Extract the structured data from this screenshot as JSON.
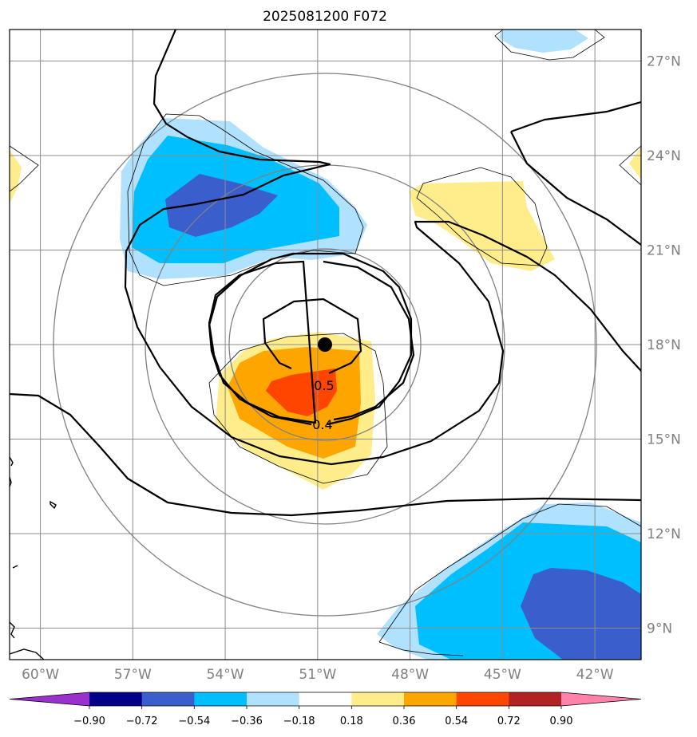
{
  "figure": {
    "title": "2025081200 F072"
  },
  "map": {
    "lon_range": [
      -61,
      -40.5
    ],
    "lat_range": [
      8,
      28
    ],
    "lon_ticks": [
      -60,
      -57,
      -54,
      -51,
      -48,
      -45,
      -42
    ],
    "lon_labels": [
      "60°W",
      "57°W",
      "54°W",
      "51°W",
      "48°W",
      "45°W",
      "42°W"
    ],
    "lat_ticks": [
      9,
      12,
      15,
      18,
      21,
      24,
      27
    ],
    "lat_labels": [
      "9°N",
      "12°N",
      "15°N",
      "18°N",
      "21°N",
      "24°N",
      "27°N"
    ],
    "grid": true,
    "center_marker": {
      "lon": -51.0,
      "lat": 18.2
    },
    "range_rings_deg": [
      3,
      5.5,
      8.5
    ],
    "contour_labels": [
      {
        "text": "0.5",
        "lon": -51.0,
        "lat": 16.9
      },
      {
        "text": "0.4",
        "lon": -51.0,
        "lat": 15.7
      }
    ]
  },
  "colorbar": {
    "levels": [
      -0.9,
      -0.72,
      -0.54,
      -0.36,
      -0.18,
      0.18,
      0.36,
      0.54,
      0.72,
      0.9
    ],
    "labels": [
      "−0.90",
      "−0.72",
      "−0.54",
      "−0.36",
      "−0.18",
      "0.18",
      "0.36",
      "0.54",
      "0.72",
      "0.90"
    ],
    "colors": [
      "#9932CC",
      "#00008B",
      "#3A5FCD",
      "#00BFFF",
      "#B0E2FF",
      "#FFFFFF",
      "#FFEC8B",
      "#FFA500",
      "#FF4500",
      "#B22222",
      "#FF82AB"
    ],
    "extend": "both"
  },
  "colors": {
    "fill_light_blue": "#B0E2FF",
    "fill_blue": "#00BFFF",
    "fill_dark_blue": "#3A5FCD",
    "fill_yellow": "#FFEC8B",
    "fill_orange": "#FFA500",
    "fill_red": "#FF4500",
    "grid": "#8c8c8c",
    "ring": "#808080",
    "contour": "#000000"
  }
}
